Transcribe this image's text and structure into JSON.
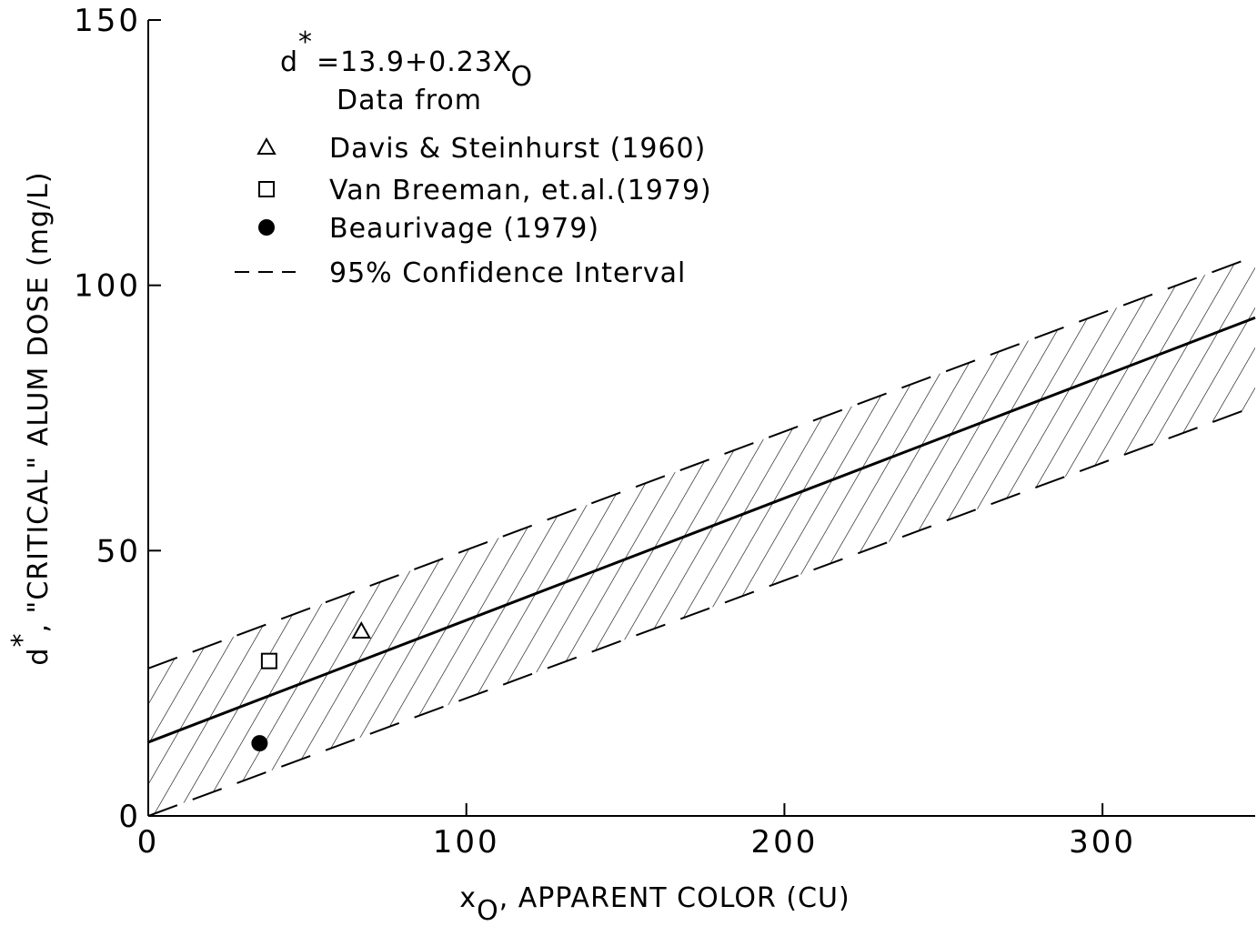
{
  "chart_data": {
    "type": "scatter",
    "annotation": {
      "main": "d",
      "sup": "*",
      "rest": "=13.9+0.23X",
      "sub": "O"
    },
    "legend_title": "Data from",
    "x_label": {
      "main": "x",
      "sub": "O",
      "rest": ", APPARENT COLOR (CU)"
    },
    "y_label": {
      "main": "d",
      "sup": "*",
      "rest": ", \"CRITICAL\" ALUM DOSE (mg/L)"
    },
    "xlim": [
      0,
      348
    ],
    "ylim": [
      0,
      150
    ],
    "xticks": [
      0,
      100,
      200,
      300
    ],
    "yticks": [
      0,
      50,
      100,
      150
    ],
    "series": [
      {
        "name": "Davis & Steinhurst (1960)",
        "marker": "triangle",
        "color": "#000000",
        "x": [
          67
        ],
        "values": [
          34.8
        ]
      },
      {
        "name": "Van Breeman, et.al.(1979)",
        "marker": "square",
        "color": "#000000",
        "x": [
          38
        ],
        "values": [
          29.2
        ]
      },
      {
        "name": "Beaurivage (1979)",
        "marker": "circle",
        "color": "#000000",
        "x": [
          35
        ],
        "values": [
          13.7
        ]
      },
      {
        "name": "95% Confidence Interval",
        "line": "dashed",
        "color": "#000000",
        "x": [
          0,
          348
        ],
        "upper": [
          27.8,
          105.5
        ],
        "lower": [
          0,
          77.2
        ]
      }
    ],
    "fit": {
      "x": [
        0,
        348
      ],
      "values": [
        13.9,
        93.9
      ],
      "color": "#000000"
    }
  }
}
